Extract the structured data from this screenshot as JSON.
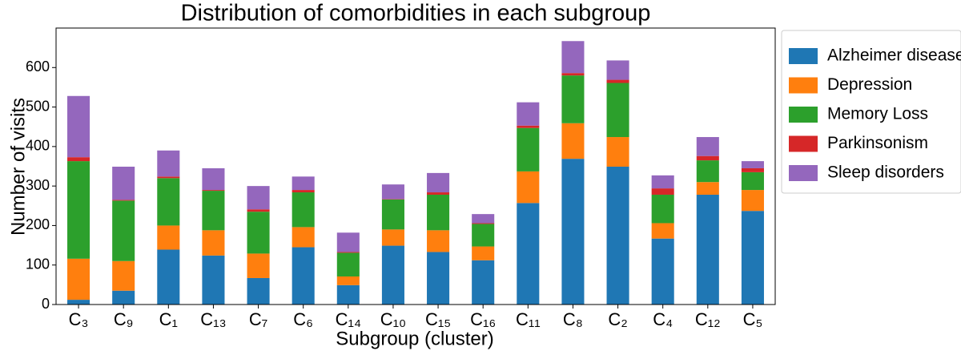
{
  "chart_data": {
    "type": "stacked_bar",
    "title": "Distribution of comorbidities in each subgroup",
    "x_label": "Subgroup (cluster)",
    "y_label": "Number of visits",
    "categories": [
      "C₃",
      "C₉",
      "C₁",
      "C₁₃",
      "C₇",
      "C₆",
      "C₁₄",
      "C₁₀",
      "C₁₅",
      "C₁₆",
      "C₁₁",
      "C₈",
      "C₂",
      "C₄",
      "C₁₂",
      "C₅"
    ],
    "series": [
      {
        "name": "Alzheimer disease",
        "color": "#1f77b4",
        "values": [
          12,
          35,
          139,
          124,
          67,
          145,
          49,
          149,
          133,
          112,
          257,
          369,
          349,
          167,
          278,
          237
        ]
      },
      {
        "name": "Depression",
        "color": "#ff7f0e",
        "values": [
          104,
          75,
          61,
          64,
          62,
          51,
          22,
          41,
          55,
          35,
          80,
          90,
          75,
          39,
          32,
          53
        ]
      },
      {
        "name": "Memory Loss",
        "color": "#2ca02c",
        "values": [
          247,
          153,
          120,
          100,
          106,
          88,
          60,
          76,
          90,
          57,
          110,
          121,
          137,
          72,
          55,
          45
        ]
      },
      {
        "name": "Parkinsonism",
        "color": "#d62728",
        "values": [
          10,
          2,
          4,
          2,
          6,
          6,
          2,
          1,
          6,
          2,
          6,
          6,
          8,
          16,
          11,
          10
        ]
      },
      {
        "name": "Sleep disorders",
        "color": "#9467bd",
        "values": [
          155,
          84,
          66,
          55,
          59,
          34,
          49,
          37,
          49,
          23,
          59,
          81,
          49,
          33,
          48,
          18
        ]
      }
    ],
    "ylim": [
      0,
      700
    ],
    "yticks": [
      0,
      100,
      200,
      300,
      400,
      500,
      600
    ],
    "legend": "upper right outside"
  }
}
